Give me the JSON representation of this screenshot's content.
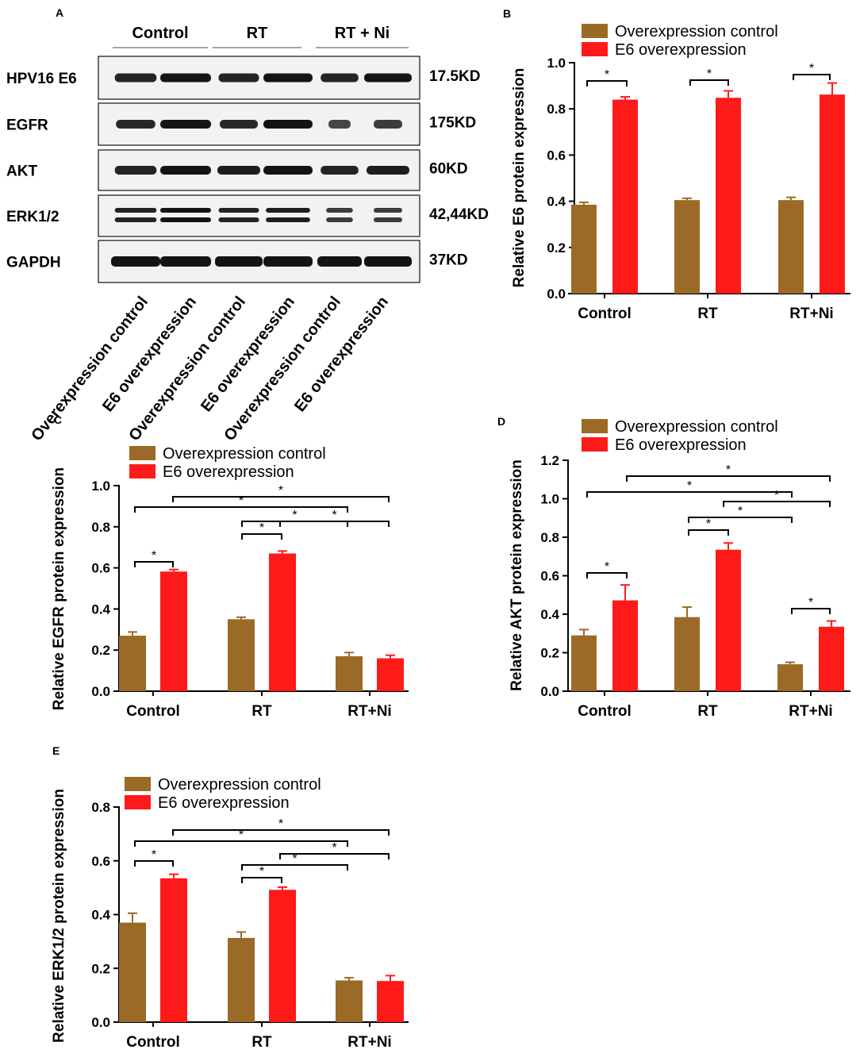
{
  "colors": {
    "control": "#9b6a26",
    "e6": "#ff1a1a",
    "axis": "#000000",
    "blot_bg": "#f2f2f2",
    "band": "#141414"
  },
  "legend": {
    "control": "Overexpression control",
    "e6": "E6 overexpression"
  },
  "blot": {
    "panel_label": "A",
    "groups": [
      "Control",
      "RT",
      "RT + Ni"
    ],
    "proteins": [
      "HPV16 E6",
      "EGFR",
      "AKT",
      "ERK1/2",
      "GAPDH"
    ],
    "sizes": [
      "17.5KD",
      "175KD",
      "60KD",
      "42,44KD",
      "37KD"
    ],
    "lanes": [
      "Overexpression control",
      "E6 overexpression",
      "Overexpression control",
      "E6 overexpression",
      "Overexpression control",
      "E6 overexpression"
    ]
  },
  "chart_data": [
    {
      "id": "B",
      "panel_label": "B",
      "type": "bar",
      "categories": [
        "Control",
        "RT",
        "RT+Ni"
      ],
      "series": [
        {
          "name": "Overexpression control",
          "values": [
            0.385,
            0.405,
            0.405
          ],
          "errors": [
            0.01,
            0.008,
            0.012
          ]
        },
        {
          "name": "E6 overexpression",
          "values": [
            0.84,
            0.848,
            0.862
          ],
          "errors": [
            0.012,
            0.03,
            0.05
          ]
        }
      ],
      "ylabel": "Relative E6 protein expression",
      "ylim": [
        0,
        1.0
      ],
      "yticks": [
        "0.0",
        "0.2",
        "0.4",
        "0.6",
        "0.8",
        "1.0"
      ],
      "annotations": [
        "*",
        "*",
        "*"
      ]
    },
    {
      "id": "C",
      "panel_label": "C",
      "type": "bar",
      "categories": [
        "Control",
        "RT",
        "RT+Ni"
      ],
      "series": [
        {
          "name": "Overexpression control",
          "values": [
            0.27,
            0.35,
            0.17
          ],
          "errors": [
            0.018,
            0.01,
            0.018
          ]
        },
        {
          "name": "E6 overexpression",
          "values": [
            0.582,
            0.67,
            0.16
          ],
          "errors": [
            0.01,
            0.012,
            0.015
          ]
        }
      ],
      "ylabel": "Relative EGFR protein expression",
      "ylim": [
        0,
        1.0
      ],
      "yticks": [
        "0.0",
        "0.2",
        "0.4",
        "0.6",
        "0.8",
        "1.0"
      ],
      "annotations": [
        "*",
        "*",
        "*",
        "*",
        "*",
        "*"
      ]
    },
    {
      "id": "D",
      "panel_label": "D",
      "type": "bar",
      "categories": [
        "Control",
        "RT",
        "RT+Ni"
      ],
      "series": [
        {
          "name": "Overexpression control",
          "values": [
            0.29,
            0.385,
            0.14
          ],
          "errors": [
            0.03,
            0.052,
            0.01
          ]
        },
        {
          "name": "E6 overexpression",
          "values": [
            0.472,
            0.735,
            0.335
          ],
          "errors": [
            0.08,
            0.035,
            0.03
          ]
        }
      ],
      "ylabel": "Relative AKT protein expression",
      "ylim": [
        0,
        1.2
      ],
      "yticks": [
        "0.0",
        "0.2",
        "0.4",
        "0.6",
        "0.8",
        "1.0",
        "1.2"
      ],
      "annotations": [
        "*",
        "*",
        "*",
        "*",
        "*",
        "*",
        "*"
      ]
    },
    {
      "id": "E",
      "panel_label": "E",
      "type": "bar",
      "categories": [
        "Control",
        "RT",
        "RT+Ni"
      ],
      "series": [
        {
          "name": "Overexpression control",
          "values": [
            0.37,
            0.313,
            0.155
          ],
          "errors": [
            0.035,
            0.022,
            0.01
          ]
        },
        {
          "name": "E6 overexpression",
          "values": [
            0.535,
            0.492,
            0.153
          ],
          "errors": [
            0.015,
            0.01,
            0.02
          ]
        }
      ],
      "ylabel": "Relative ERK1/2 protein expression",
      "ylim": [
        0,
        0.8
      ],
      "yticks": [
        "0.0",
        "0.2",
        "0.4",
        "0.6",
        "0.8"
      ],
      "annotations": [
        "*",
        "*",
        "*",
        "*",
        "*",
        "*"
      ]
    }
  ]
}
